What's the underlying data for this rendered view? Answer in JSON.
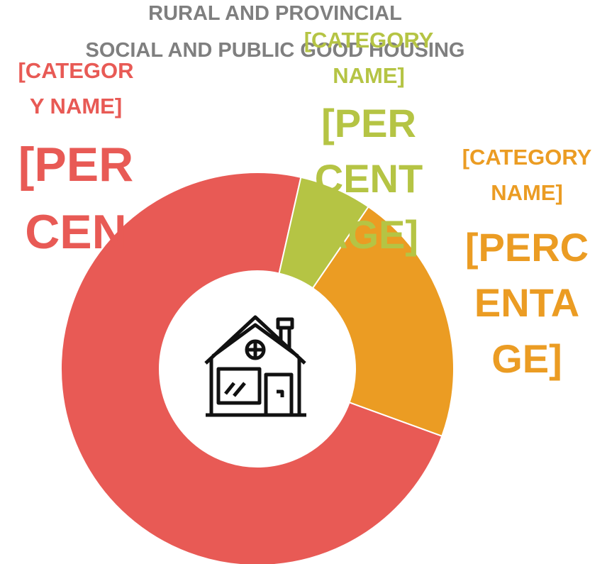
{
  "chart_data": {
    "type": "donut",
    "title": "RURAL AND PROVINCIAL",
    "subtitle": "SOCIAL AND PUBLIC GOOD HOUSING",
    "categories": [
      "[CATEGORY NAME]",
      "[CATEGORY NAME]",
      "[CATEGORY NAME]"
    ],
    "values": [
      6,
      21,
      73
    ],
    "value_labels": [
      "[PERCENTAGE]",
      "[PERCENTAGE]",
      "[PERCENTAGE]"
    ],
    "colors": [
      "#b5c444",
      "#eb9c23",
      "#e85a55"
    ]
  }
}
